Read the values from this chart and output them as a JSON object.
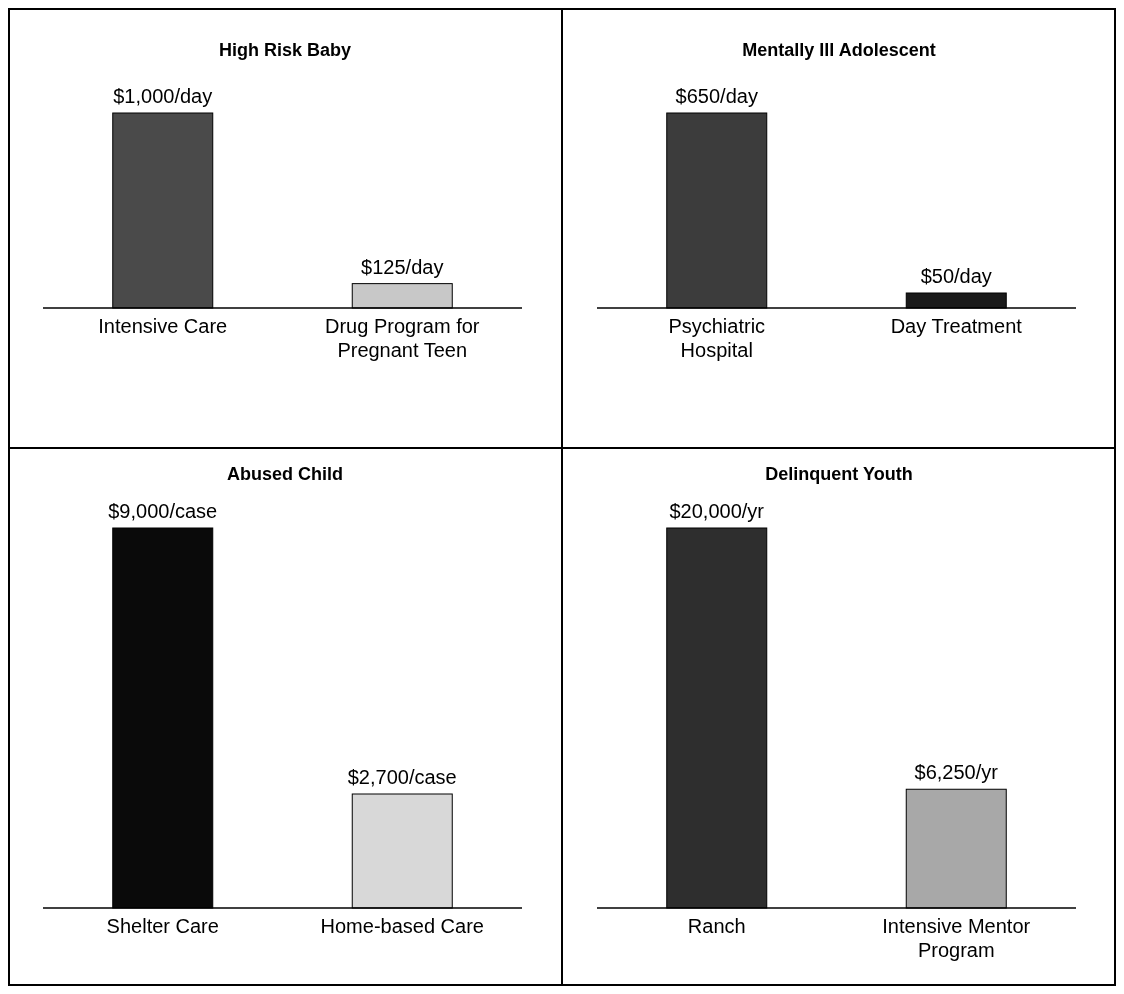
{
  "chart_data": [
    {
      "type": "bar",
      "title": "High Risk Baby",
      "categories": [
        "Intensive Care",
        "Drug Program for Pregnant Teen"
      ],
      "values": [
        1000,
        125
      ],
      "value_labels": [
        "$1,000/day",
        "$125/day"
      ],
      "colors": [
        "#4a4a4a",
        "#c8c8c8"
      ]
    },
    {
      "type": "bar",
      "title": "Mentally Ill Adolescent",
      "categories": [
        "Psychiatric Hospital",
        "Day Treatment"
      ],
      "values": [
        650,
        50
      ],
      "value_labels": [
        "$650/day",
        "$50/day"
      ],
      "colors": [
        "#3c3c3c",
        "#1a1a1a"
      ]
    },
    {
      "type": "bar",
      "title": "Abused Child",
      "categories": [
        "Shelter Care",
        "Home-based Care"
      ],
      "values": [
        9000,
        2700
      ],
      "value_labels": [
        "$9,000/case",
        "$2,700/case"
      ],
      "colors": [
        "#0a0a0a",
        "#d8d8d8"
      ]
    },
    {
      "type": "bar",
      "title": "Delinquent Youth",
      "categories": [
        "Ranch",
        "Intensive Mentor Program"
      ],
      "values": [
        20000,
        6250
      ],
      "value_labels": [
        "$20,000/yr",
        "$6,250/yr"
      ],
      "colors": [
        "#2e2e2e",
        "#a8a8a8"
      ]
    }
  ]
}
